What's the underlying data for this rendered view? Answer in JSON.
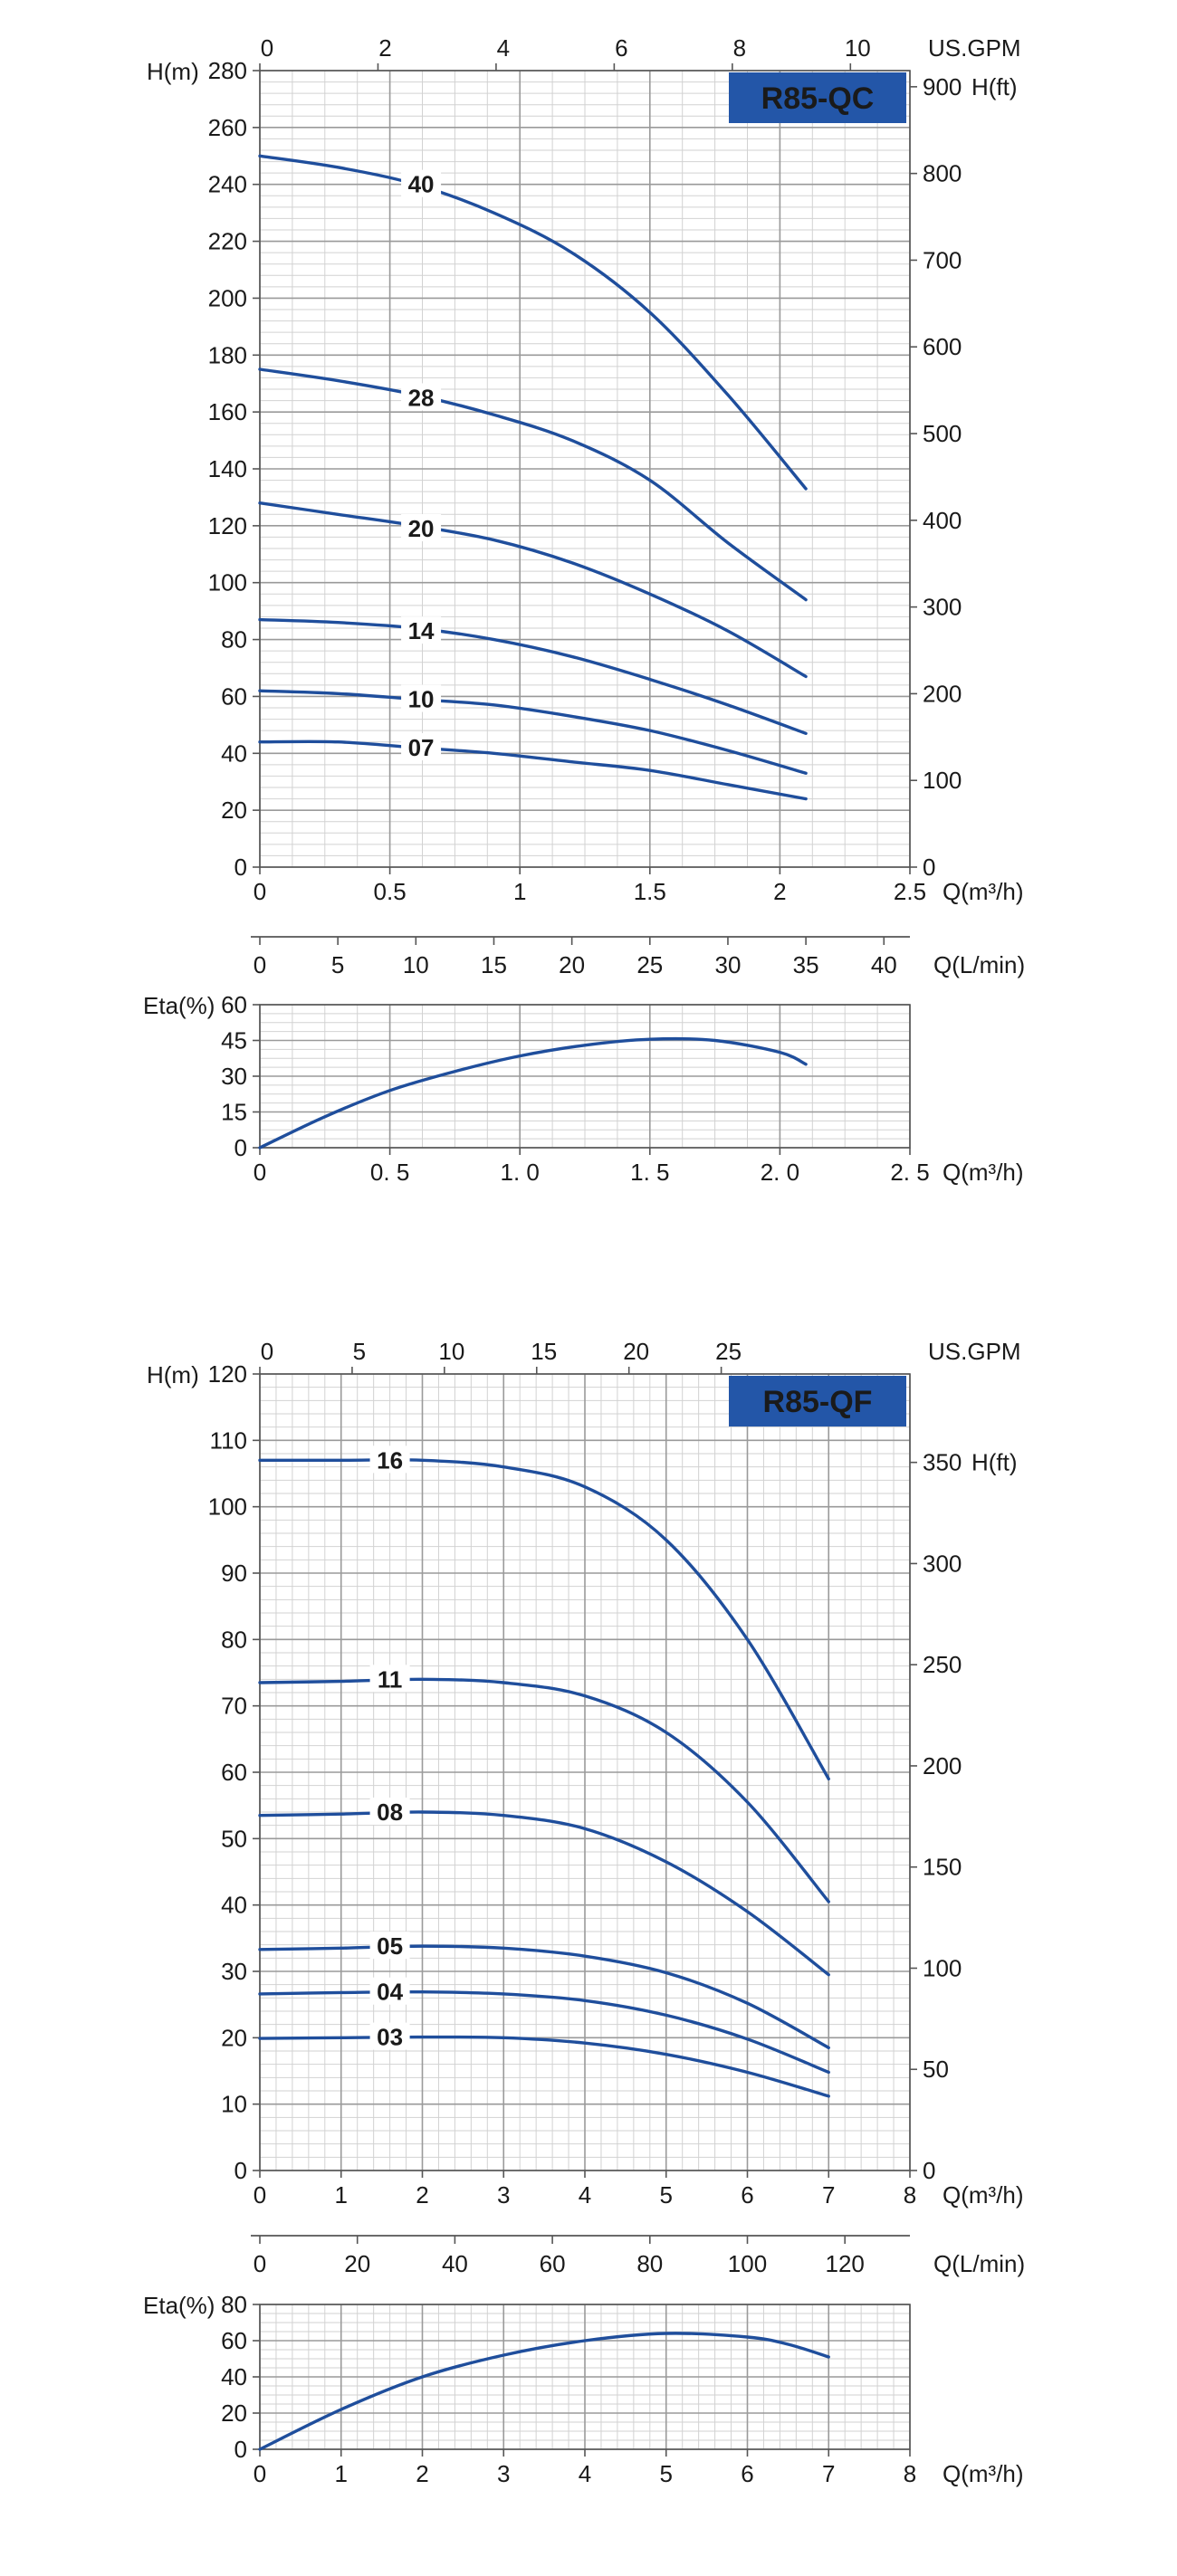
{
  "colors": {
    "curve": "#1f4e9c",
    "badge_bg": "#2356a8",
    "badge_text": "#ffffff",
    "grid_major": "#9a9a9a",
    "grid_minor": "#d2d2d2",
    "axis": "#555555"
  },
  "chart_data": [
    {
      "id": "qc",
      "type": "line",
      "title": "R85-QC",
      "sub": [
        {
          "role": "head",
          "xlabel": "Q(m³/h)",
          "xlim": [
            0,
            2.5
          ],
          "x_ticks": [
            0,
            0.5,
            1,
            1.5,
            2,
            2.5
          ],
          "x_tick_labels": [
            "0",
            "0.5",
            "1",
            "1.5",
            "2",
            "2.5"
          ],
          "ylabel": "H(m)",
          "ylim": [
            0,
            280
          ],
          "y_ticks": [
            0,
            20,
            40,
            60,
            80,
            100,
            120,
            140,
            160,
            180,
            200,
            220,
            240,
            260,
            280
          ],
          "top_axis": {
            "label": "US.GPM",
            "ticks": [
              0,
              2,
              4,
              6,
              8,
              10
            ],
            "per_x_unit": 4.4029
          },
          "right_axis": {
            "label": "H(ft)",
            "ticks": [
              0,
              100,
              200,
              300,
              400,
              500,
              600,
              700,
              800,
              900
            ],
            "per_y_unit": 3.28084
          },
          "secondary_x_axis": {
            "label": "Q(L/min)",
            "ticks": [
              0,
              5,
              10,
              15,
              20,
              25,
              30,
              35,
              40
            ],
            "per_x_unit": 16.6667
          },
          "series": [
            {
              "name": "40",
              "label_at": [
                0.62,
                240
              ],
              "x": [
                0,
                0.3,
                0.6,
                0.9,
                1.2,
                1.5,
                1.8,
                2.1
              ],
              "values": [
                250,
                246,
                240,
                230,
                216,
                195,
                166,
                133
              ]
            },
            {
              "name": "28",
              "label_at": [
                0.62,
                165
              ],
              "x": [
                0,
                0.3,
                0.6,
                0.9,
                1.2,
                1.5,
                1.8,
                2.1
              ],
              "values": [
                175,
                171,
                166,
                159,
                150,
                136,
                114,
                94
              ]
            },
            {
              "name": "20",
              "label_at": [
                0.62,
                119
              ],
              "x": [
                0,
                0.3,
                0.6,
                0.9,
                1.2,
                1.5,
                1.8,
                2.1
              ],
              "values": [
                128,
                124,
                120,
                115,
                107,
                96,
                83,
                67
              ]
            },
            {
              "name": "14",
              "label_at": [
                0.62,
                83
              ],
              "x": [
                0,
                0.3,
                0.6,
                0.9,
                1.2,
                1.5,
                1.8,
                2.1
              ],
              "values": [
                87,
                86,
                84,
                80,
                74,
                66,
                57,
                47
              ]
            },
            {
              "name": "10",
              "label_at": [
                0.62,
                59
              ],
              "x": [
                0,
                0.3,
                0.6,
                0.9,
                1.2,
                1.5,
                1.8,
                2.1
              ],
              "values": [
                62,
                61,
                59,
                57,
                53,
                48,
                41,
                33
              ]
            },
            {
              "name": "07",
              "label_at": [
                0.62,
                42
              ],
              "x": [
                0,
                0.3,
                0.6,
                0.9,
                1.2,
                1.5,
                1.8,
                2.1
              ],
              "values": [
                44,
                44,
                42,
                40,
                37,
                34,
                29,
                24
              ]
            }
          ]
        },
        {
          "role": "efficiency",
          "xlabel": "Q(m³/h)",
          "xlim": [
            0,
            2.5
          ],
          "x_ticks": [
            0,
            0.5,
            1,
            1.5,
            2,
            2.5
          ],
          "x_tick_labels": [
            "0",
            "0. 5",
            "1. 0",
            "1. 5",
            "2. 0",
            "2. 5"
          ],
          "ylabel": "Eta(%)",
          "ylim": [
            0,
            60
          ],
          "y_ticks": [
            0,
            15,
            30,
            45,
            60
          ],
          "series": [
            {
              "name": "Eta",
              "x": [
                0,
                0.25,
                0.5,
                0.75,
                1,
                1.25,
                1.5,
                1.75,
                2,
                2.1
              ],
              "values": [
                0,
                13,
                24,
                32,
                38.5,
                43,
                45.5,
                45,
                40,
                35
              ]
            }
          ]
        }
      ]
    },
    {
      "id": "qf",
      "type": "line",
      "title": "R85-QF",
      "sub": [
        {
          "role": "head",
          "xlabel": "Q(m³/h)",
          "xlim": [
            0,
            8
          ],
          "x_ticks": [
            0,
            1,
            2,
            3,
            4,
            5,
            6,
            7,
            8
          ],
          "x_tick_labels": [
            "0",
            "1",
            "2",
            "3",
            "4",
            "5",
            "6",
            "7",
            "8"
          ],
          "ylabel": "H(m)",
          "ylim": [
            0,
            120
          ],
          "y_ticks": [
            0,
            10,
            20,
            30,
            40,
            50,
            60,
            70,
            80,
            90,
            100,
            110,
            120
          ],
          "top_axis": {
            "label": "US.GPM",
            "ticks": [
              0,
              5,
              10,
              15,
              20,
              25
            ],
            "per_x_unit": 4.4029
          },
          "right_axis": {
            "label": "H(ft)",
            "ticks": [
              0,
              50,
              100,
              150,
              200,
              250,
              300,
              350
            ],
            "per_y_unit": 3.28084
          },
          "secondary_x_axis": {
            "label": "Q(L/min)",
            "ticks": [
              0,
              20,
              40,
              60,
              80,
              100,
              120
            ],
            "per_x_unit": 16.6667
          },
          "series": [
            {
              "name": "16",
              "label_at": [
                1.6,
                107
              ],
              "x": [
                0,
                1,
                2,
                3,
                4,
                5,
                6,
                7
              ],
              "values": [
                107,
                107,
                107,
                106,
                103,
                95,
                80,
                59
              ]
            },
            {
              "name": "11",
              "label_at": [
                1.6,
                74
              ],
              "x": [
                0,
                1,
                2,
                3,
                4,
                5,
                6,
                7
              ],
              "values": [
                73.5,
                73.7,
                74,
                73.5,
                71.5,
                66,
                55.5,
                40.5
              ]
            },
            {
              "name": "08",
              "label_at": [
                1.6,
                54
              ],
              "x": [
                0,
                1,
                2,
                3,
                4,
                5,
                6,
                7
              ],
              "values": [
                53.5,
                53.7,
                54,
                53.5,
                51.5,
                46.5,
                39,
                29.5
              ]
            },
            {
              "name": "05",
              "label_at": [
                1.6,
                33.8
              ],
              "x": [
                0,
                1,
                2,
                3,
                4,
                5,
                6,
                7
              ],
              "values": [
                33.3,
                33.5,
                33.8,
                33.5,
                32.3,
                29.8,
                25.2,
                18.5
              ]
            },
            {
              "name": "04",
              "label_at": [
                1.6,
                26.9
              ],
              "x": [
                0,
                1,
                2,
                3,
                4,
                5,
                6,
                7
              ],
              "values": [
                26.6,
                26.8,
                26.9,
                26.6,
                25.6,
                23.4,
                19.8,
                14.8
              ]
            },
            {
              "name": "03",
              "label_at": [
                1.6,
                20.1
              ],
              "x": [
                0,
                1,
                2,
                3,
                4,
                5,
                6,
                7
              ],
              "values": [
                19.9,
                20,
                20.1,
                20,
                19.2,
                17.5,
                14.8,
                11.2
              ]
            }
          ]
        },
        {
          "role": "efficiency",
          "xlabel": "Q(m³/h)",
          "xlim": [
            0,
            8
          ],
          "x_ticks": [
            0,
            1,
            2,
            3,
            4,
            5,
            6,
            7,
            8
          ],
          "x_tick_labels": [
            "0",
            "1",
            "2",
            "3",
            "4",
            "5",
            "6",
            "7",
            "8"
          ],
          "ylabel": "Eta(%)",
          "ylim": [
            0,
            80
          ],
          "y_ticks": [
            0,
            20,
            40,
            60,
            80
          ],
          "series": [
            {
              "name": "Eta",
              "x": [
                0,
                1,
                2,
                3,
                4,
                5,
                6,
                6.5,
                7
              ],
              "values": [
                0,
                22,
                40,
                52,
                60,
                64,
                62,
                58,
                51
              ]
            }
          ]
        }
      ]
    }
  ]
}
